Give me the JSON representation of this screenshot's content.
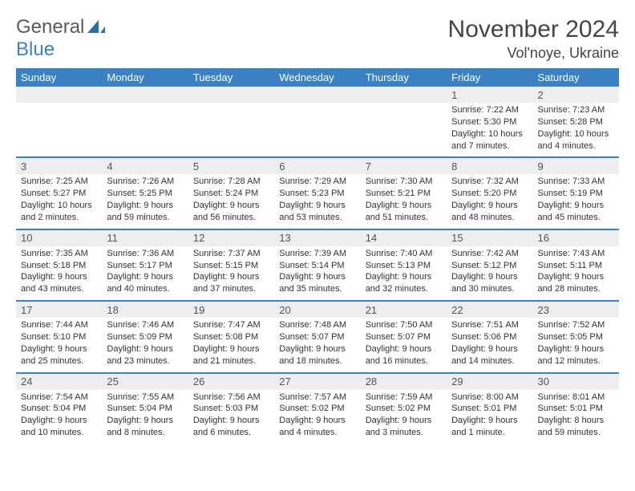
{
  "brand": {
    "general": "General",
    "blue": "Blue"
  },
  "title": "November 2024",
  "location": "Vol'noye, Ukraine",
  "colors": {
    "accent": "#3b82c4",
    "daynum_bg": "#eeeeee",
    "text": "#333333"
  },
  "dayHeaders": [
    "Sunday",
    "Monday",
    "Tuesday",
    "Wednesday",
    "Thursday",
    "Friday",
    "Saturday"
  ],
  "weeks": [
    {
      "nums": [
        "",
        "",
        "",
        "",
        "",
        "1",
        "2"
      ],
      "cells": [
        null,
        null,
        null,
        null,
        null,
        {
          "sunrise": "Sunrise: 7:22 AM",
          "sunset": "Sunset: 5:30 PM",
          "daylight": "Daylight: 10 hours and 7 minutes."
        },
        {
          "sunrise": "Sunrise: 7:23 AM",
          "sunset": "Sunset: 5:28 PM",
          "daylight": "Daylight: 10 hours and 4 minutes."
        }
      ]
    },
    {
      "nums": [
        "3",
        "4",
        "5",
        "6",
        "7",
        "8",
        "9"
      ],
      "cells": [
        {
          "sunrise": "Sunrise: 7:25 AM",
          "sunset": "Sunset: 5:27 PM",
          "daylight": "Daylight: 10 hours and 2 minutes."
        },
        {
          "sunrise": "Sunrise: 7:26 AM",
          "sunset": "Sunset: 5:25 PM",
          "daylight": "Daylight: 9 hours and 59 minutes."
        },
        {
          "sunrise": "Sunrise: 7:28 AM",
          "sunset": "Sunset: 5:24 PM",
          "daylight": "Daylight: 9 hours and 56 minutes."
        },
        {
          "sunrise": "Sunrise: 7:29 AM",
          "sunset": "Sunset: 5:23 PM",
          "daylight": "Daylight: 9 hours and 53 minutes."
        },
        {
          "sunrise": "Sunrise: 7:30 AM",
          "sunset": "Sunset: 5:21 PM",
          "daylight": "Daylight: 9 hours and 51 minutes."
        },
        {
          "sunrise": "Sunrise: 7:32 AM",
          "sunset": "Sunset: 5:20 PM",
          "daylight": "Daylight: 9 hours and 48 minutes."
        },
        {
          "sunrise": "Sunrise: 7:33 AM",
          "sunset": "Sunset: 5:19 PM",
          "daylight": "Daylight: 9 hours and 45 minutes."
        }
      ]
    },
    {
      "nums": [
        "10",
        "11",
        "12",
        "13",
        "14",
        "15",
        "16"
      ],
      "cells": [
        {
          "sunrise": "Sunrise: 7:35 AM",
          "sunset": "Sunset: 5:18 PM",
          "daylight": "Daylight: 9 hours and 43 minutes."
        },
        {
          "sunrise": "Sunrise: 7:36 AM",
          "sunset": "Sunset: 5:17 PM",
          "daylight": "Daylight: 9 hours and 40 minutes."
        },
        {
          "sunrise": "Sunrise: 7:37 AM",
          "sunset": "Sunset: 5:15 PM",
          "daylight": "Daylight: 9 hours and 37 minutes."
        },
        {
          "sunrise": "Sunrise: 7:39 AM",
          "sunset": "Sunset: 5:14 PM",
          "daylight": "Daylight: 9 hours and 35 minutes."
        },
        {
          "sunrise": "Sunrise: 7:40 AM",
          "sunset": "Sunset: 5:13 PM",
          "daylight": "Daylight: 9 hours and 32 minutes."
        },
        {
          "sunrise": "Sunrise: 7:42 AM",
          "sunset": "Sunset: 5:12 PM",
          "daylight": "Daylight: 9 hours and 30 minutes."
        },
        {
          "sunrise": "Sunrise: 7:43 AM",
          "sunset": "Sunset: 5:11 PM",
          "daylight": "Daylight: 9 hours and 28 minutes."
        }
      ]
    },
    {
      "nums": [
        "17",
        "18",
        "19",
        "20",
        "21",
        "22",
        "23"
      ],
      "cells": [
        {
          "sunrise": "Sunrise: 7:44 AM",
          "sunset": "Sunset: 5:10 PM",
          "daylight": "Daylight: 9 hours and 25 minutes."
        },
        {
          "sunrise": "Sunrise: 7:46 AM",
          "sunset": "Sunset: 5:09 PM",
          "daylight": "Daylight: 9 hours and 23 minutes."
        },
        {
          "sunrise": "Sunrise: 7:47 AM",
          "sunset": "Sunset: 5:08 PM",
          "daylight": "Daylight: 9 hours and 21 minutes."
        },
        {
          "sunrise": "Sunrise: 7:48 AM",
          "sunset": "Sunset: 5:07 PM",
          "daylight": "Daylight: 9 hours and 18 minutes."
        },
        {
          "sunrise": "Sunrise: 7:50 AM",
          "sunset": "Sunset: 5:07 PM",
          "daylight": "Daylight: 9 hours and 16 minutes."
        },
        {
          "sunrise": "Sunrise: 7:51 AM",
          "sunset": "Sunset: 5:06 PM",
          "daylight": "Daylight: 9 hours and 14 minutes."
        },
        {
          "sunrise": "Sunrise: 7:52 AM",
          "sunset": "Sunset: 5:05 PM",
          "daylight": "Daylight: 9 hours and 12 minutes."
        }
      ]
    },
    {
      "nums": [
        "24",
        "25",
        "26",
        "27",
        "28",
        "29",
        "30"
      ],
      "cells": [
        {
          "sunrise": "Sunrise: 7:54 AM",
          "sunset": "Sunset: 5:04 PM",
          "daylight": "Daylight: 9 hours and 10 minutes."
        },
        {
          "sunrise": "Sunrise: 7:55 AM",
          "sunset": "Sunset: 5:04 PM",
          "daylight": "Daylight: 9 hours and 8 minutes."
        },
        {
          "sunrise": "Sunrise: 7:56 AM",
          "sunset": "Sunset: 5:03 PM",
          "daylight": "Daylight: 9 hours and 6 minutes."
        },
        {
          "sunrise": "Sunrise: 7:57 AM",
          "sunset": "Sunset: 5:02 PM",
          "daylight": "Daylight: 9 hours and 4 minutes."
        },
        {
          "sunrise": "Sunrise: 7:59 AM",
          "sunset": "Sunset: 5:02 PM",
          "daylight": "Daylight: 9 hours and 3 minutes."
        },
        {
          "sunrise": "Sunrise: 8:00 AM",
          "sunset": "Sunset: 5:01 PM",
          "daylight": "Daylight: 9 hours and 1 minute."
        },
        {
          "sunrise": "Sunrise: 8:01 AM",
          "sunset": "Sunset: 5:01 PM",
          "daylight": "Daylight: 8 hours and 59 minutes."
        }
      ]
    }
  ]
}
